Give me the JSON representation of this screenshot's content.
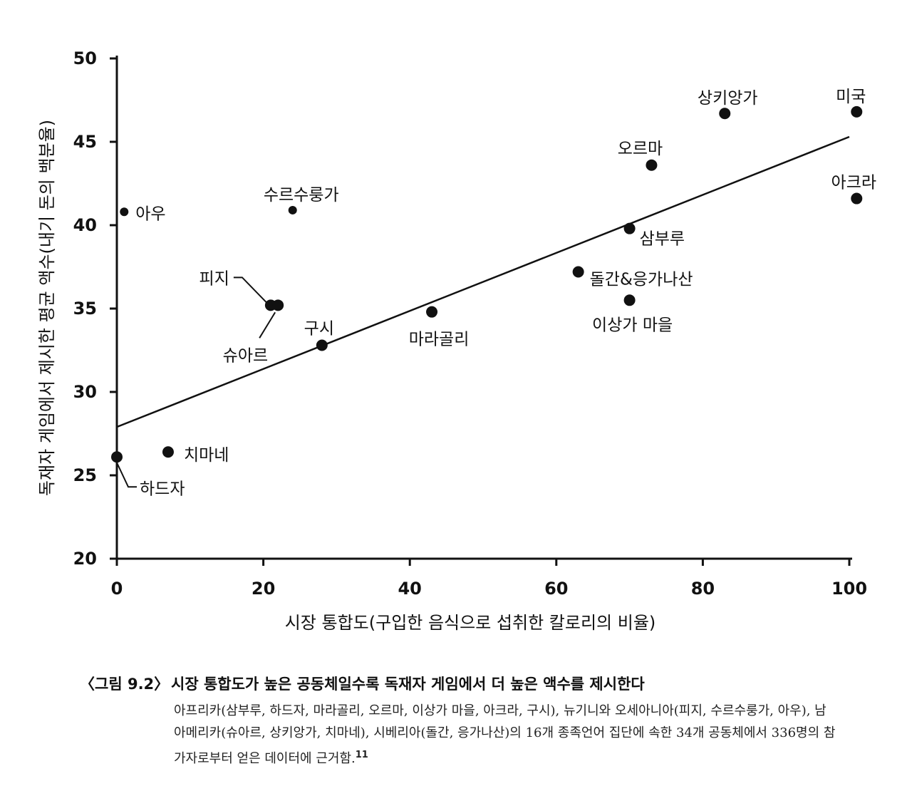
{
  "chart_data": {
    "type": "scatter",
    "xlabel": "시장 통합도(구입한 음식으로 섭취한 칼로리의 비율)",
    "ylabel": "독재자 게임에서 제시한 평균 액수(내기 돈의 백분율)",
    "xlim": [
      0,
      100
    ],
    "ylim": [
      20,
      50
    ],
    "x_ticks": [
      "0",
      "20",
      "40",
      "60",
      "80",
      "100"
    ],
    "y_ticks": [
      "20",
      "25",
      "30",
      "35",
      "40",
      "45",
      "50"
    ],
    "grid": false,
    "points": [
      {
        "label": "아우",
        "x": 1,
        "y": 40.8
      },
      {
        "label": "수르수룽가",
        "x": 24,
        "y": 40.9
      },
      {
        "label": "피지",
        "x": 21,
        "y": 35.2
      },
      {
        "label": "슈아르",
        "x": 22,
        "y": 35.2
      },
      {
        "label": "구시",
        "x": 28,
        "y": 32.8
      },
      {
        "label": "마라골리",
        "x": 43,
        "y": 34.8
      },
      {
        "label": "치마네",
        "x": 7,
        "y": 26.4
      },
      {
        "label": "하드자",
        "x": 0,
        "y": 26.1
      },
      {
        "label": "돌간&응가나산",
        "x": 63,
        "y": 37.2
      },
      {
        "label": "이상가 마을",
        "x": 70,
        "y": 35.5
      },
      {
        "label": "삼부루",
        "x": 70,
        "y": 39.8
      },
      {
        "label": "오르마",
        "x": 73,
        "y": 43.6
      },
      {
        "label": "상키앙가",
        "x": 83,
        "y": 46.7
      },
      {
        "label": "미국",
        "x": 101,
        "y": 46.8
      },
      {
        "label": "아크라",
        "x": 101,
        "y": 41.6
      }
    ],
    "trendline": {
      "x": [
        0,
        100
      ],
      "y": [
        27.9,
        45.3
      ]
    }
  },
  "caption": {
    "figure_number": "〈그림 9.2〉",
    "title": "시장 통합도가 높은 공동체일수록 독재자 게임에서 더 높은 액수를 제시한다",
    "body": "아프리카(삼부루, 하드자, 마라골리, 오르마, 이상가 마을, 아크라, 구시), 뉴기니와 오세아니아(피지, 수르수룽가, 아우), 남아메리카(슈아르, 상키앙가, 치마네), 시베리아(돌간, 응가나산)의 16개 종족언어 집단에 속한 34개 공동체에서 336명의 참가자로부터 얻은 데이터에 근거함.",
    "footnote": "11"
  }
}
